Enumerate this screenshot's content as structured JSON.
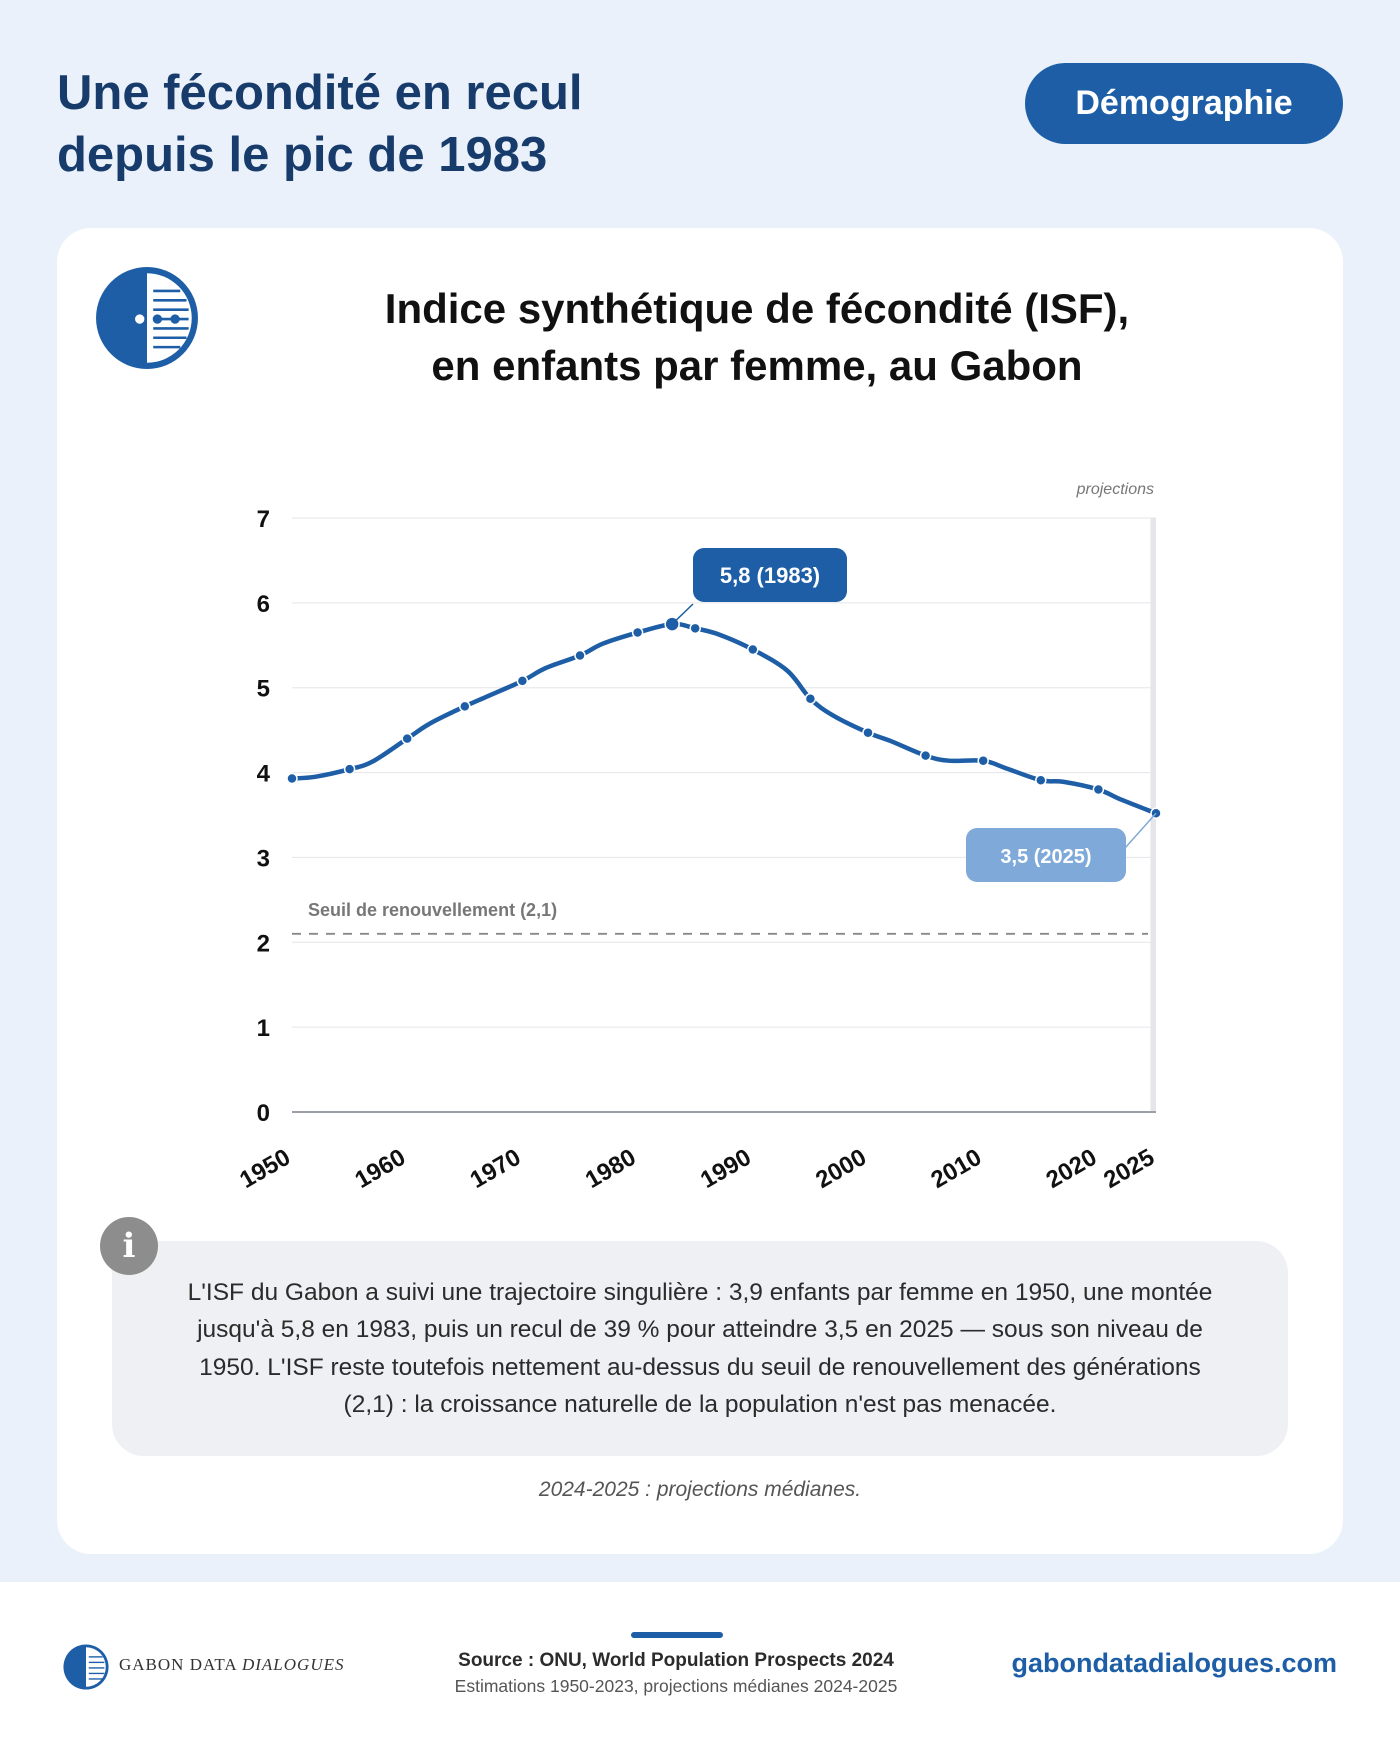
{
  "header": {
    "title": "Une fécondité en recul\ndepuis le pic de 1983",
    "tag": "Démographie"
  },
  "card": {
    "logo_icon": "gabon-data-dialogues-logo-icon",
    "info_icon": "info-icon",
    "info_glyph": "i",
    "info_text": "L'ISF du Gabon a suivi une trajectoire singulière : 3,9 enfants par femme en 1950, une montée jusqu'à 5,8 en 1983, puis un recul de 39 % pour atteindre 3,5 en 2025 — sous son niveau de 1950. L'ISF reste toutefois nettement au-dessus du seuil de renouvellement des générations (2,1) : la croissance naturelle de la population n'est pas menacée.",
    "note": "2024-2025 : projections médianes."
  },
  "chart_data": {
    "type": "line",
    "title": "Indice synthétique de fécondité (ISF),\nen enfants par femme, au Gabon",
    "xlabel": "",
    "ylabel": "",
    "xlim": [
      1950,
      2025
    ],
    "ylim": [
      0,
      7
    ],
    "x_ticks": [
      "1950",
      "1960",
      "1970",
      "1980",
      "1990",
      "2000",
      "2010",
      "2020",
      "2025"
    ],
    "y_ticks": [
      "0",
      "1",
      "2",
      "3",
      "4",
      "5",
      "6",
      "7"
    ],
    "grid": true,
    "series": [
      {
        "color": "#1d5ea6",
        "points": [
          [
            1950,
            3.93
          ],
          [
            1952,
            3.95
          ],
          [
            1955,
            4.04
          ],
          [
            1957,
            4.13
          ],
          [
            1960,
            4.4
          ],
          [
            1962,
            4.58
          ],
          [
            1965,
            4.78
          ],
          [
            1967,
            4.9
          ],
          [
            1970,
            5.08
          ],
          [
            1972,
            5.23
          ],
          [
            1975,
            5.38
          ],
          [
            1977,
            5.52
          ],
          [
            1980,
            5.65
          ],
          [
            1983,
            5.75
          ],
          [
            1985,
            5.7
          ],
          [
            1987,
            5.63
          ],
          [
            1990,
            5.45
          ],
          [
            1993,
            5.2
          ],
          [
            1995,
            4.87
          ],
          [
            1997,
            4.67
          ],
          [
            2000,
            4.47
          ],
          [
            2002,
            4.37
          ],
          [
            2005,
            4.2
          ],
          [
            2007,
            4.14
          ],
          [
            2010,
            4.14
          ],
          [
            2012,
            4.05
          ],
          [
            2015,
            3.91
          ],
          [
            2017,
            3.89
          ],
          [
            2020,
            3.8
          ],
          [
            2022,
            3.68
          ],
          [
            2025,
            3.52
          ]
        ],
        "marked_years": [
          1950,
          1955,
          1960,
          1965,
          1970,
          1975,
          1980,
          1983,
          1985,
          1990,
          1995,
          2000,
          2005,
          2010,
          2015,
          2020,
          2025
        ]
      }
    ],
    "reference_line": {
      "value": 2.1,
      "label": "Seuil de renouvellement (2,1)",
      "style": "dashed",
      "color": "#888888"
    },
    "projection_band": {
      "from": 2024,
      "to": 2025,
      "label": "projections",
      "color": "#e4e6ea"
    },
    "annotations": [
      {
        "label": "5,8 (1983)",
        "x": 1983,
        "y": 5.75,
        "color": "#1d5ea6"
      },
      {
        "label": "3,5 (2025)",
        "x": 2025,
        "y": 3.52,
        "color": "#7ea9d8"
      }
    ]
  },
  "footer": {
    "brand_main": "GABON DATA",
    "brand_em": "DIALOGUES",
    "logo_icon": "gabon-data-dialogues-logo-icon",
    "source": "Source : ONU, World Population Prospects 2024",
    "source_detail": "Estimations 1950-2023, projections médianes 2024-2025",
    "url": "gabondatadialogues.com"
  }
}
